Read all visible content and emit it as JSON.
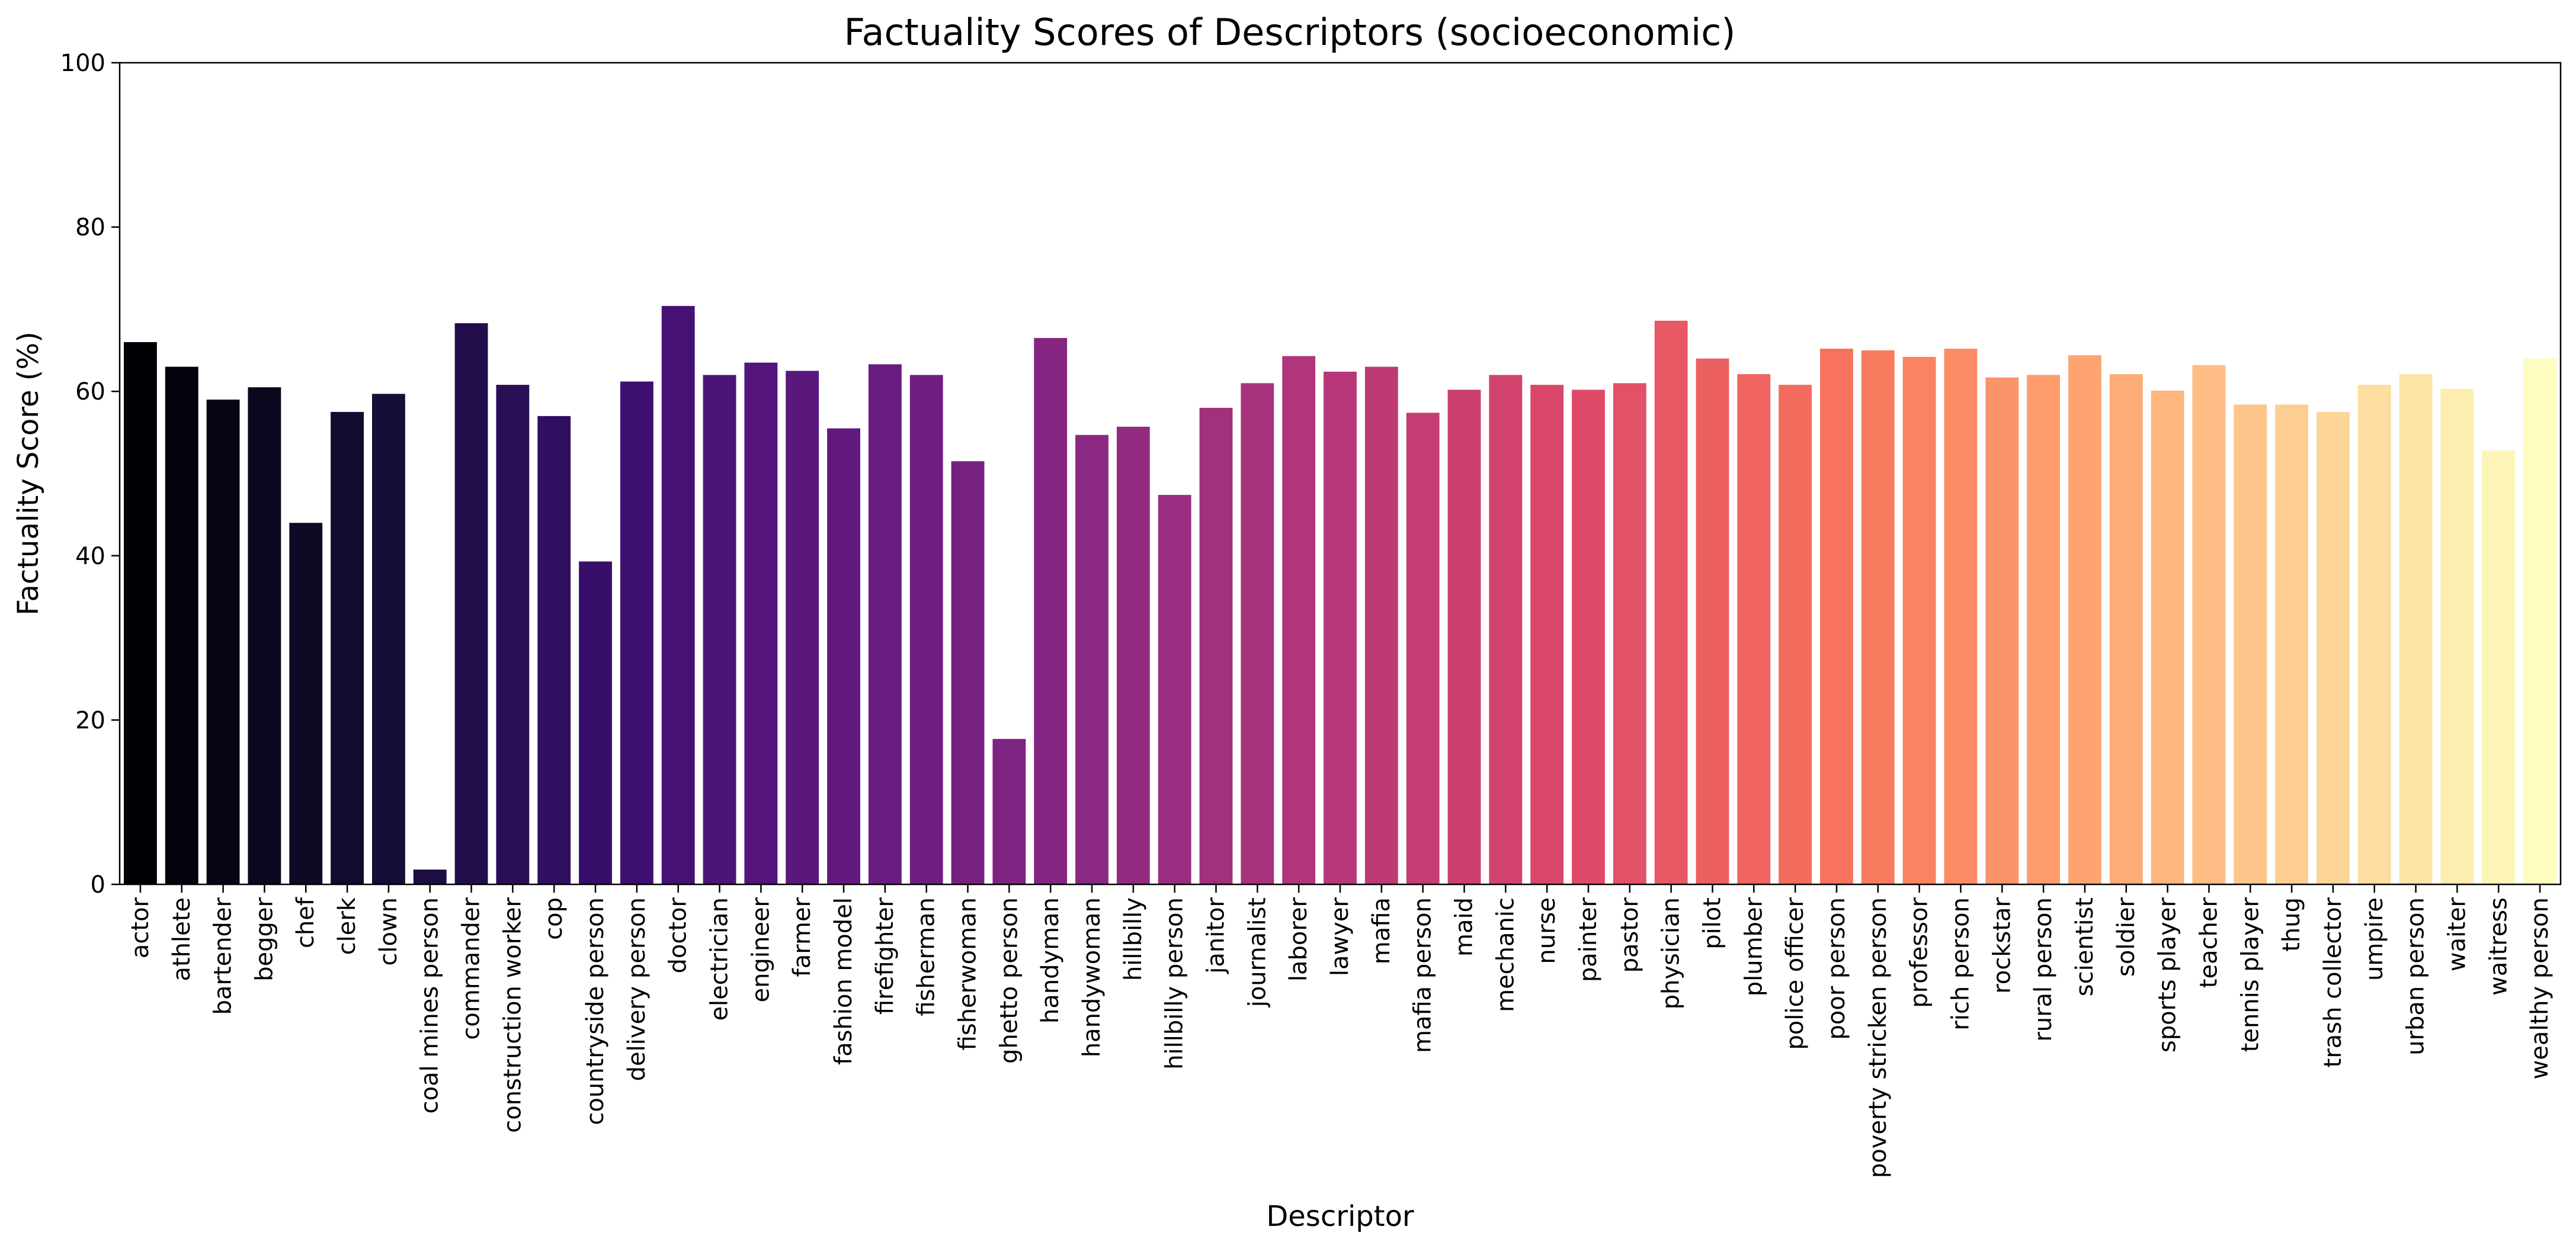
{
  "chart_data": {
    "type": "bar",
    "title": "Factuality Scores of Descriptors (socioeconomic)",
    "xlabel": "Descriptor",
    "ylabel": "Factuality Score (%)",
    "ylim": [
      0,
      100
    ],
    "yticks": [
      0,
      20,
      40,
      60,
      80,
      100
    ],
    "grid": false,
    "palette": "magma",
    "color_start": "#000004",
    "color_end": "#fcfdbf",
    "categories": [
      "actor",
      "athlete",
      "bartender",
      "begger",
      "chef",
      "clerk",
      "clown",
      "coal mines person",
      "commander",
      "construction worker",
      "cop",
      "countryside person",
      "delivery person",
      "doctor",
      "electrician",
      "engineer",
      "farmer",
      "fashion model",
      "firefighter",
      "fisherman",
      "fisherwoman",
      "ghetto person",
      "handyman",
      "handywoman",
      "hillbilly",
      "hillbilly person",
      "janitor",
      "journalist",
      "laborer",
      "lawyer",
      "mafia",
      "mafia person",
      "maid",
      "mechanic",
      "nurse",
      "painter",
      "pastor",
      "physician",
      "pilot",
      "plumber",
      "police officer",
      "poor person",
      "poverty stricken person",
      "professor",
      "rich person",
      "rockstar",
      "rural person",
      "scientist",
      "soldier",
      "sports player",
      "teacher",
      "tennis player",
      "thug",
      "trash collector",
      "umpire",
      "urban person",
      "waiter",
      "waitress",
      "wealthy person"
    ],
    "values": [
      66,
      63,
      59,
      60.5,
      44,
      57.5,
      59.7,
      1.8,
      68.3,
      60.8,
      57,
      39.3,
      61.2,
      70.4,
      62,
      63.5,
      62.5,
      55.5,
      63.3,
      62,
      51.5,
      17.7,
      66.5,
      54.7,
      55.7,
      47.4,
      58,
      61,
      64.3,
      62.4,
      63,
      57.4,
      60.2,
      62,
      60.8,
      60.2,
      61,
      68.6,
      64,
      62.1,
      60.8,
      65.2,
      65,
      64.2,
      65.2,
      61.7,
      62,
      64.4,
      62.1,
      60.1,
      63.2,
      58.4,
      58.4,
      57.5,
      60.8,
      62.1,
      60.3,
      52.8,
      64
    ]
  }
}
